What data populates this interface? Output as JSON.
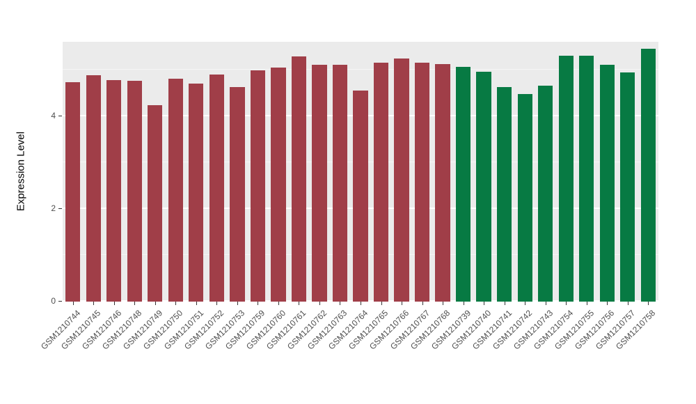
{
  "figure": {
    "background": "#FFFFFF",
    "panel_background": "#EBEBEB",
    "grid_color": "#FFFFFF"
  },
  "chart_data": {
    "type": "bar",
    "title": "",
    "xlabel": "",
    "ylabel": "Expression Level",
    "ylim": [
      0,
      5.6
    ],
    "yticks": [
      0,
      2,
      4
    ],
    "yticks_minor": [
      1,
      3,
      5
    ],
    "grid": true,
    "legend_position": "none",
    "categories": [
      "GSM1210744",
      "GSM1210745",
      "GSM1210746",
      "GSM1210748",
      "GSM1210749",
      "GSM1210750",
      "GSM1210751",
      "GSM1210752",
      "GSM1210753",
      "GSM1210759",
      "GSM1210760",
      "GSM1210761",
      "GSM1210762",
      "GSM1210763",
      "GSM1210764",
      "GSM1210765",
      "GSM1210766",
      "GSM1210767",
      "GSM1210768",
      "GSM1210739",
      "GSM1210740",
      "GSM1210741",
      "GSM1210742",
      "GSM1210743",
      "GSM1210754",
      "GSM1210755",
      "GSM1210756",
      "GSM1210757",
      "GSM1210758"
    ],
    "values": [
      4.73,
      4.88,
      4.78,
      4.76,
      4.24,
      4.8,
      4.7,
      4.9,
      4.63,
      4.98,
      5.05,
      5.28,
      5.1,
      5.1,
      4.55,
      5.15,
      5.24,
      5.15,
      5.12,
      5.06,
      4.96,
      4.63,
      4.48,
      4.65,
      5.3,
      5.3,
      5.1,
      4.94,
      5.45
    ],
    "bar_groups": [
      "group1",
      "group1",
      "group1",
      "group1",
      "group1",
      "group1",
      "group1",
      "group1",
      "group1",
      "group1",
      "group1",
      "group1",
      "group1",
      "group1",
      "group1",
      "group1",
      "group1",
      "group1",
      "group1",
      "group2",
      "group2",
      "group2",
      "group2",
      "group2",
      "group2",
      "group2",
      "group2",
      "group2",
      "group2"
    ],
    "group_colors": {
      "group1": "#A03E48",
      "group2": "#077A43"
    }
  }
}
